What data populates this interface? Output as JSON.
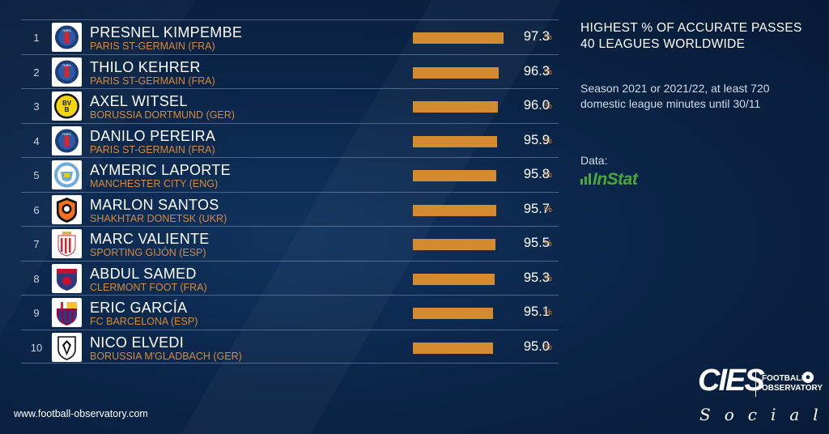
{
  "chart_data": {
    "type": "bar",
    "orientation": "horizontal",
    "title": "HIGHEST % OF ACCURATE PASSES",
    "subtitle": "40 LEAGUES WORLDWIDE",
    "note_lines": [
      "Season 2021 or 2021/22, at least 720",
      "domestic league minutes until 30/11"
    ],
    "unit": "%",
    "xlim": [
      0,
      100
    ],
    "rows": [
      {
        "rank": "1",
        "player": "PRESNEL KIMPEMBE",
        "club": "PARIS ST-GERMAIN (FRA)",
        "value": 97.3,
        "value_text": "97.3",
        "logo": "psg-logo-icon"
      },
      {
        "rank": "2",
        "player": "THILO KEHRER",
        "club": "PARIS ST-GERMAIN (FRA)",
        "value": 96.3,
        "value_text": "96.3",
        "logo": "psg-logo-icon"
      },
      {
        "rank": "3",
        "player": "AXEL WITSEL",
        "club": "BORUSSIA DORTMUND (GER)",
        "value": 96.0,
        "value_text": "96.0",
        "logo": "bvb-logo-icon"
      },
      {
        "rank": "4",
        "player": "DANILO PEREIRA",
        "club": "PARIS ST-GERMAIN (FRA)",
        "value": 95.9,
        "value_text": "95.9",
        "logo": "psg-logo-icon"
      },
      {
        "rank": "5",
        "player": "AYMERIC LAPORTE",
        "club": "MANCHESTER CITY (ENG)",
        "value": 95.8,
        "value_text": "95.8",
        "logo": "man-city-logo-icon"
      },
      {
        "rank": "6",
        "player": "MARLON SANTOS",
        "club": "SHAKHTAR DONETSK (UKR)",
        "value": 95.7,
        "value_text": "95.7",
        "logo": "shakhtar-logo-icon"
      },
      {
        "rank": "7",
        "player": "MARC VALIENTE",
        "club": "SPORTING GIJÓN (ESP)",
        "value": 95.5,
        "value_text": "95.5",
        "logo": "sporting-gijon-logo-icon"
      },
      {
        "rank": "8",
        "player": "ABDUL SAMED",
        "club": "CLERMONT FOOT (FRA)",
        "value": 95.3,
        "value_text": "95.3",
        "logo": "clermont-logo-icon"
      },
      {
        "rank": "9",
        "player": "ERIC GARCÍA",
        "club": "FC BARCELONA (ESP)",
        "value": 95.1,
        "value_text": "95.1",
        "logo": "barcelona-logo-icon"
      },
      {
        "rank": "10",
        "player": "NICO ELVEDI",
        "club": "BORUSSIA M'GLADBACH (GER)",
        "value": 95.0,
        "value_text": "95.0",
        "logo": "gladbach-logo-icon"
      }
    ]
  },
  "data_source": {
    "label": "Data:",
    "brand": "InStat"
  },
  "footer": {
    "url": "www.football-observatory.com",
    "brand": "CIES",
    "brand_sub_1": "FOOTBALL",
    "brand_sub_2": "OBSERVATORY",
    "brand_tagline": "Social"
  },
  "colors": {
    "bar": "#d48b30",
    "club_text": "#d8893a",
    "instat": "#4aa83c",
    "background": "#0b2548"
  }
}
